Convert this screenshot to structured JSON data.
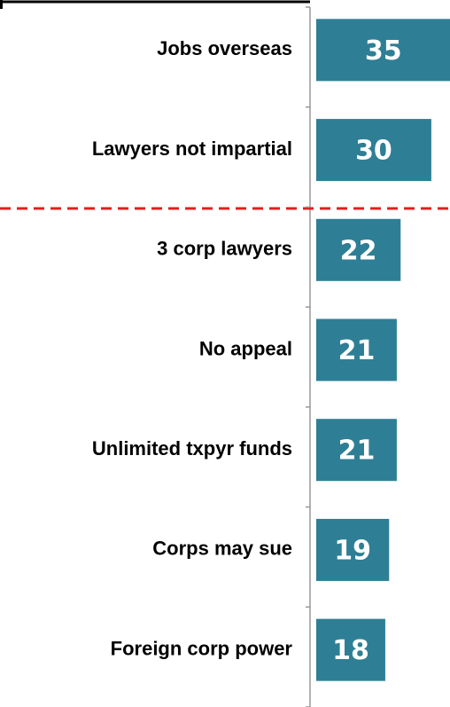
{
  "chart_data": {
    "type": "bar",
    "orientation": "horizontal",
    "categories": [
      "Jobs overseas",
      "Lawyers not impartial",
      "3 corp lawyers",
      "No appeal",
      "Unlimited txpyr funds",
      "Corps may sue",
      "Foreign corp power"
    ],
    "values": [
      35,
      30,
      22,
      21,
      21,
      19,
      18
    ],
    "color": "#2e7f95"
  }
}
